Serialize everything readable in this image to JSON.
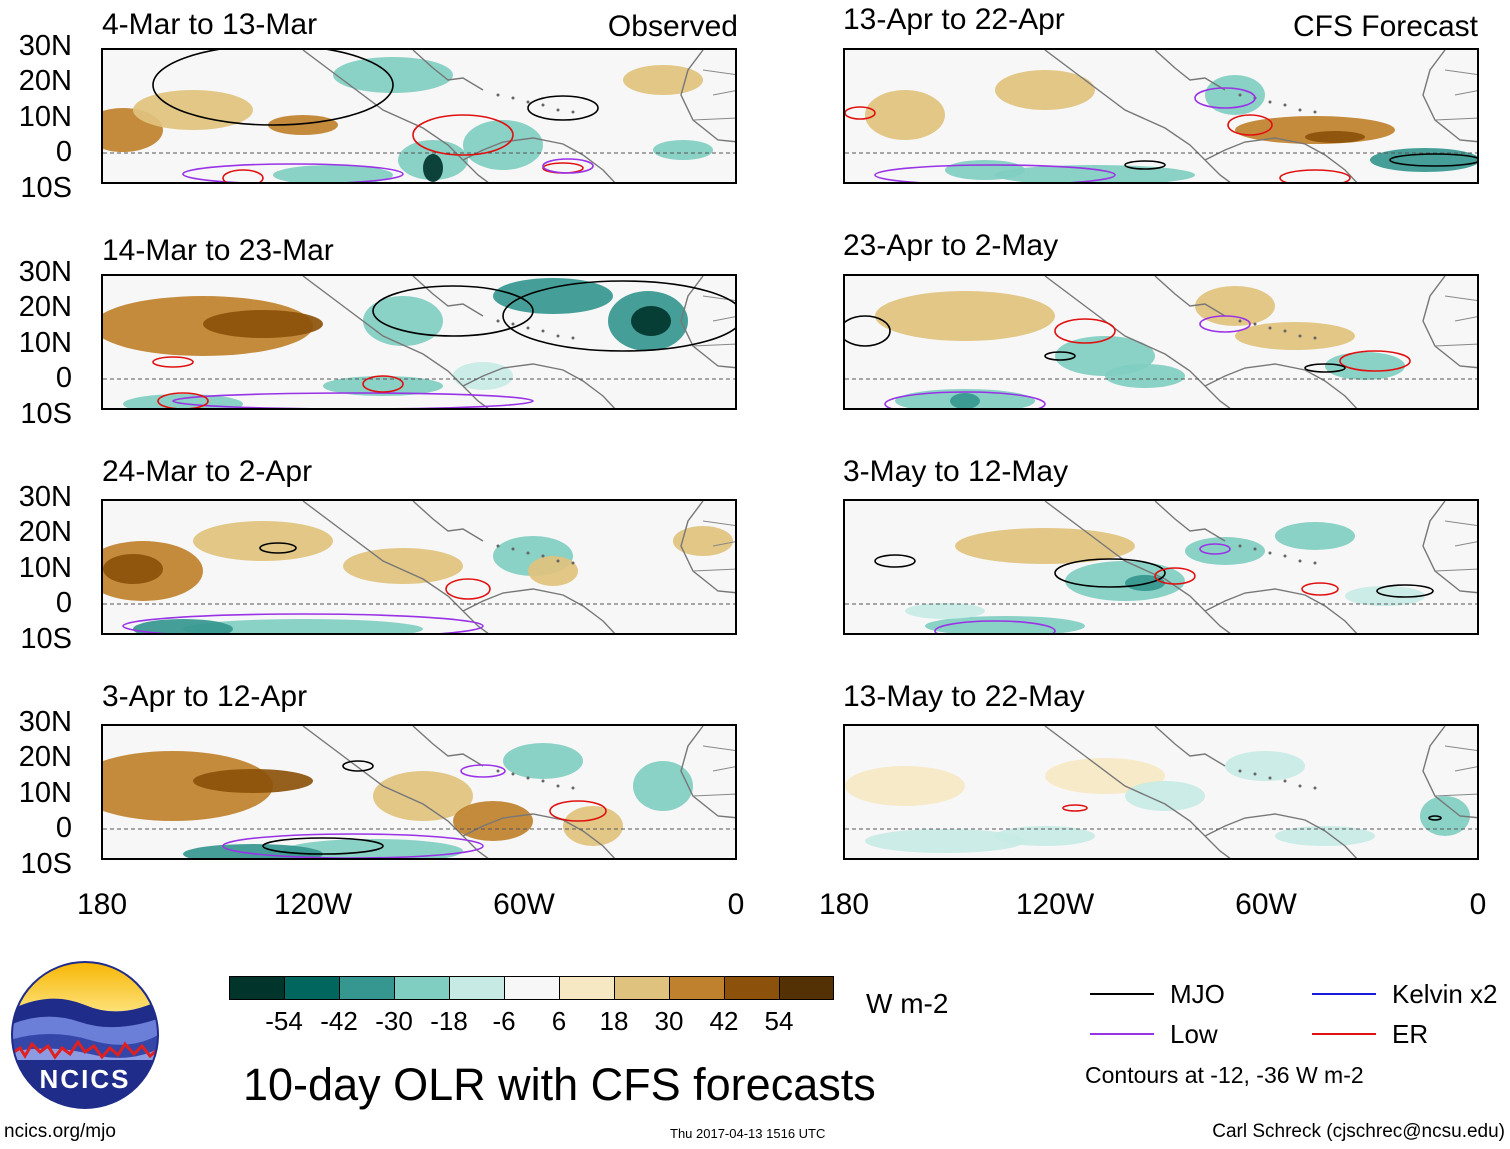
{
  "observed_label": "Observed",
  "forecast_label": "CFS Forecast",
  "panels_left": [
    {
      "title": "4-Mar to 13-Mar"
    },
    {
      "title": "14-Mar to 23-Mar"
    },
    {
      "title": "24-Mar to 2-Apr"
    },
    {
      "title": "3-Apr to 12-Apr"
    }
  ],
  "panels_right": [
    {
      "title": "13-Apr to 22-Apr"
    },
    {
      "title": "23-Apr to 2-May"
    },
    {
      "title": "3-May to 12-May"
    },
    {
      "title": "13-May to 22-May"
    }
  ],
  "lat_labels": [
    "30N",
    "20N",
    "10N",
    "0",
    "10S"
  ],
  "lon_labels": [
    "180",
    "120W",
    "60W",
    "0"
  ],
  "colorbar": {
    "unit": "W m-2",
    "labels": [
      "-54",
      "-42",
      "-30",
      "-18",
      "-6",
      "6",
      "18",
      "30",
      "42",
      "54"
    ],
    "colors": [
      "#01352c",
      "#01665e",
      "#35978f",
      "#80cdc1",
      "#c7eae5",
      "#f7f7f7",
      "#f6e8c3",
      "#dfc27d",
      "#bf812d",
      "#8c510a",
      "#543005"
    ]
  },
  "legend": {
    "items": [
      {
        "label": "MJO",
        "color": "#000000"
      },
      {
        "label": "Kelvin x2",
        "color": "#1a1adc"
      },
      {
        "label": "Low",
        "color": "#9a32e6"
      },
      {
        "label": "ER",
        "color": "#e01010"
      }
    ],
    "note": "Contours at -12, -36 W m-2"
  },
  "title": "10-day OLR with CFS forecasts",
  "logo_text": "NCICS",
  "website": "ncics.org/mjo",
  "timestamp": "Thu 2017-04-13 1516 UTC",
  "author": "Carl Schreck (cjschrec@ncsu.edu)"
}
